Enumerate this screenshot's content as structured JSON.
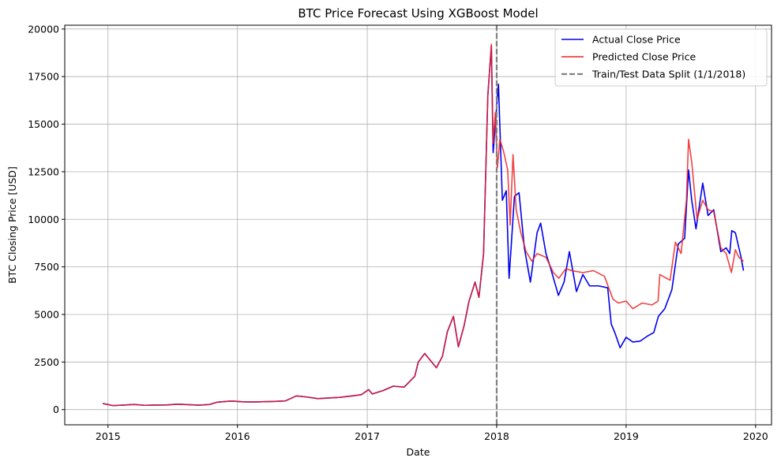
{
  "chart_data": {
    "type": "line",
    "title": "BTC Price Forecast Using XGBoost Model",
    "xlabel": "Date",
    "ylabel": "BTC Closing Price [USD]",
    "xlim": [
      "2014-09-01",
      "2020-02-15"
    ],
    "ylim": [
      -800,
      20200
    ],
    "x_ticks": [
      "2015-01-01",
      "2016-01-01",
      "2017-01-01",
      "2018-01-01",
      "2019-01-01",
      "2020-01-01"
    ],
    "x_tick_labels": [
      "2015",
      "2016",
      "2017",
      "2018",
      "2019",
      "2020"
    ],
    "y_ticks": [
      0,
      2500,
      5000,
      7500,
      10000,
      12500,
      15000,
      17500,
      20000
    ],
    "y_tick_labels": [
      "0",
      "2500",
      "5000",
      "7500",
      "10000",
      "12500",
      "15000",
      "17500",
      "20000"
    ],
    "grid": true,
    "legend_position": "top-right",
    "split": {
      "date": "2018-01-01",
      "label": "Train/Test Data Split (1/1/2018)",
      "color": "#808080"
    },
    "series": [
      {
        "name": "Actual Close Price",
        "color": "#0000ee",
        "points": [
          [
            "2014-12-17",
            320
          ],
          [
            "2015-01-15",
            210
          ],
          [
            "2015-02-15",
            240
          ],
          [
            "2015-03-15",
            270
          ],
          [
            "2015-04-15",
            225
          ],
          [
            "2015-05-15",
            238
          ],
          [
            "2015-06-15",
            245
          ],
          [
            "2015-07-15",
            285
          ],
          [
            "2015-08-15",
            260
          ],
          [
            "2015-09-15",
            232
          ],
          [
            "2015-10-15",
            270
          ],
          [
            "2015-11-05",
            390
          ],
          [
            "2015-12-15",
            450
          ],
          [
            "2016-01-15",
            410
          ],
          [
            "2016-02-15",
            400
          ],
          [
            "2016-03-15",
            415
          ],
          [
            "2016-04-15",
            430
          ],
          [
            "2016-05-15",
            455
          ],
          [
            "2016-06-15",
            720
          ],
          [
            "2016-07-15",
            660
          ],
          [
            "2016-08-15",
            575
          ],
          [
            "2016-09-15",
            610
          ],
          [
            "2016-10-15",
            640
          ],
          [
            "2016-11-15",
            710
          ],
          [
            "2016-12-15",
            780
          ],
          [
            "2017-01-05",
            1050
          ],
          [
            "2017-01-15",
            820
          ],
          [
            "2017-02-15",
            1000
          ],
          [
            "2017-03-15",
            1230
          ],
          [
            "2017-04-15",
            1180
          ],
          [
            "2017-05-15",
            1750
          ],
          [
            "2017-05-25",
            2500
          ],
          [
            "2017-06-12",
            2950
          ],
          [
            "2017-07-15",
            2200
          ],
          [
            "2017-08-01",
            2800
          ],
          [
            "2017-08-15",
            4100
          ],
          [
            "2017-09-01",
            4900
          ],
          [
            "2017-09-15",
            3300
          ],
          [
            "2017-10-01",
            4400
          ],
          [
            "2017-10-15",
            5700
          ],
          [
            "2017-11-01",
            6700
          ],
          [
            "2017-11-12",
            5900
          ],
          [
            "2017-11-25",
            8200
          ],
          [
            "2017-12-07",
            16500
          ],
          [
            "2017-12-17",
            19100
          ],
          [
            "2017-12-22",
            13500
          ],
          [
            "2017-12-28",
            15000
          ],
          [
            "2018-01-06",
            17100
          ],
          [
            "2018-01-17",
            11000
          ],
          [
            "2018-01-28",
            11500
          ],
          [
            "2018-02-05",
            6900
          ],
          [
            "2018-02-20",
            11200
          ],
          [
            "2018-03-05",
            11400
          ],
          [
            "2018-03-20",
            8500
          ],
          [
            "2018-04-06",
            6700
          ],
          [
            "2018-04-25",
            9300
          ],
          [
            "2018-05-05",
            9800
          ],
          [
            "2018-05-20",
            8200
          ],
          [
            "2018-06-01",
            7500
          ],
          [
            "2018-06-24",
            6000
          ],
          [
            "2018-07-10",
            6700
          ],
          [
            "2018-07-25",
            8300
          ],
          [
            "2018-08-14",
            6200
          ],
          [
            "2018-09-01",
            7100
          ],
          [
            "2018-09-20",
            6500
          ],
          [
            "2018-10-15",
            6500
          ],
          [
            "2018-11-10",
            6400
          ],
          [
            "2018-11-20",
            4500
          ],
          [
            "2018-12-01",
            4000
          ],
          [
            "2018-12-15",
            3250
          ],
          [
            "2019-01-01",
            3800
          ],
          [
            "2019-01-20",
            3550
          ],
          [
            "2019-02-10",
            3600
          ],
          [
            "2019-03-01",
            3850
          ],
          [
            "2019-03-20",
            4050
          ],
          [
            "2019-04-02",
            4900
          ],
          [
            "2019-04-20",
            5300
          ],
          [
            "2019-05-10",
            6300
          ],
          [
            "2019-05-28",
            8700
          ],
          [
            "2019-06-15",
            9000
          ],
          [
            "2019-06-26",
            12600
          ],
          [
            "2019-07-05",
            11000
          ],
          [
            "2019-07-17",
            9500
          ],
          [
            "2019-08-05",
            11900
          ],
          [
            "2019-08-20",
            10200
          ],
          [
            "2019-09-05",
            10500
          ],
          [
            "2019-09-25",
            8300
          ],
          [
            "2019-10-10",
            8500
          ],
          [
            "2019-10-20",
            8200
          ],
          [
            "2019-10-26",
            9400
          ],
          [
            "2019-11-05",
            9300
          ],
          [
            "2019-11-20",
            8100
          ],
          [
            "2019-11-28",
            7300
          ]
        ]
      },
      {
        "name": "Predicted Close Price",
        "color": "#ee2222",
        "points": [
          [
            "2014-12-17",
            320
          ],
          [
            "2015-01-15",
            210
          ],
          [
            "2015-02-15",
            240
          ],
          [
            "2015-03-15",
            270
          ],
          [
            "2015-04-15",
            225
          ],
          [
            "2015-05-15",
            238
          ],
          [
            "2015-06-15",
            245
          ],
          [
            "2015-07-15",
            285
          ],
          [
            "2015-08-15",
            260
          ],
          [
            "2015-09-15",
            232
          ],
          [
            "2015-10-15",
            270
          ],
          [
            "2015-11-05",
            390
          ],
          [
            "2015-12-15",
            450
          ],
          [
            "2016-01-15",
            410
          ],
          [
            "2016-02-15",
            400
          ],
          [
            "2016-03-15",
            415
          ],
          [
            "2016-04-15",
            430
          ],
          [
            "2016-05-15",
            455
          ],
          [
            "2016-06-15",
            720
          ],
          [
            "2016-07-15",
            660
          ],
          [
            "2016-08-15",
            575
          ],
          [
            "2016-09-15",
            610
          ],
          [
            "2016-10-15",
            640
          ],
          [
            "2016-11-15",
            710
          ],
          [
            "2016-12-15",
            780
          ],
          [
            "2017-01-05",
            1050
          ],
          [
            "2017-01-15",
            820
          ],
          [
            "2017-02-15",
            1000
          ],
          [
            "2017-03-15",
            1230
          ],
          [
            "2017-04-15",
            1180
          ],
          [
            "2017-05-15",
            1750
          ],
          [
            "2017-05-25",
            2500
          ],
          [
            "2017-06-12",
            2950
          ],
          [
            "2017-07-15",
            2200
          ],
          [
            "2017-08-01",
            2800
          ],
          [
            "2017-08-15",
            4100
          ],
          [
            "2017-09-01",
            4900
          ],
          [
            "2017-09-15",
            3300
          ],
          [
            "2017-10-01",
            4400
          ],
          [
            "2017-10-15",
            5700
          ],
          [
            "2017-11-01",
            6700
          ],
          [
            "2017-11-12",
            5900
          ],
          [
            "2017-11-25",
            8200
          ],
          [
            "2017-12-07",
            16500
          ],
          [
            "2017-12-17",
            19200
          ],
          [
            "2017-12-22",
            14000
          ],
          [
            "2017-12-28",
            15600
          ],
          [
            "2018-01-03",
            12700
          ],
          [
            "2018-01-10",
            14200
          ],
          [
            "2018-01-20",
            13600
          ],
          [
            "2018-02-01",
            12600
          ],
          [
            "2018-02-08",
            9700
          ],
          [
            "2018-02-16",
            13400
          ],
          [
            "2018-02-25",
            10500
          ],
          [
            "2018-03-10",
            9300
          ],
          [
            "2018-03-25",
            8300
          ],
          [
            "2018-04-10",
            7800
          ],
          [
            "2018-04-25",
            8200
          ],
          [
            "2018-05-20",
            8000
          ],
          [
            "2018-06-10",
            7200
          ],
          [
            "2018-06-25",
            6900
          ],
          [
            "2018-07-15",
            7400
          ],
          [
            "2018-08-01",
            7300
          ],
          [
            "2018-09-01",
            7200
          ],
          [
            "2018-10-01",
            7300
          ],
          [
            "2018-11-01",
            7000
          ],
          [
            "2018-11-25",
            5800
          ],
          [
            "2018-12-10",
            5600
          ],
          [
            "2019-01-01",
            5700
          ],
          [
            "2019-01-20",
            5300
          ],
          [
            "2019-02-15",
            5600
          ],
          [
            "2019-03-15",
            5500
          ],
          [
            "2019-04-01",
            5700
          ],
          [
            "2019-04-06",
            7100
          ],
          [
            "2019-04-25",
            6900
          ],
          [
            "2019-05-05",
            6800
          ],
          [
            "2019-05-20",
            8800
          ],
          [
            "2019-06-05",
            8200
          ],
          [
            "2019-06-20",
            11000
          ],
          [
            "2019-06-26",
            14200
          ],
          [
            "2019-07-05",
            13000
          ],
          [
            "2019-07-20",
            10000
          ],
          [
            "2019-08-05",
            11000
          ],
          [
            "2019-08-20",
            10500
          ],
          [
            "2019-09-05",
            10400
          ],
          [
            "2019-09-25",
            8500
          ],
          [
            "2019-10-10",
            8200
          ],
          [
            "2019-10-25",
            7200
          ],
          [
            "2019-11-05",
            8400
          ],
          [
            "2019-11-15",
            8000
          ],
          [
            "2019-11-28",
            7800
          ]
        ]
      }
    ]
  }
}
